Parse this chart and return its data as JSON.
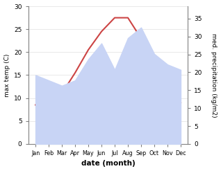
{
  "months": [
    "Jan",
    "Feb",
    "Mar",
    "Apr",
    "May",
    "Jun",
    "Jul",
    "Aug",
    "Sep",
    "Oct",
    "Nov",
    "Dec"
  ],
  "max_temp": [
    8.5,
    8.5,
    11.0,
    15.5,
    20.5,
    24.5,
    27.5,
    27.5,
    23.0,
    19.0,
    12.0,
    9.0
  ],
  "precipitation": [
    65,
    60,
    55,
    60,
    80,
    95,
    70,
    100,
    110,
    85,
    75,
    70
  ],
  "temp_color": "#cc4444",
  "precip_fill_color": "#c8d4f5",
  "temp_ylim": [
    0,
    30
  ],
  "precip_ylim": [
    0,
    130
  ],
  "temp_yticks": [
    0,
    5,
    10,
    15,
    20,
    25,
    30
  ],
  "precip_yticks_vals": [
    0,
    5,
    10,
    15,
    20,
    25,
    30,
    35
  ],
  "precip_yticks_pos": [
    0,
    16.9,
    33.8,
    50.7,
    67.6,
    84.5,
    101.5,
    118.5
  ],
  "xlabel": "date (month)",
  "ylabel_left": "max temp (C)",
  "ylabel_right": "med. precipitation (kg/m2)",
  "background_color": "#ffffff",
  "right_ylim": [
    0,
    35
  ],
  "right_yticks": [
    0,
    5,
    10,
    15,
    20,
    25,
    30,
    35
  ]
}
